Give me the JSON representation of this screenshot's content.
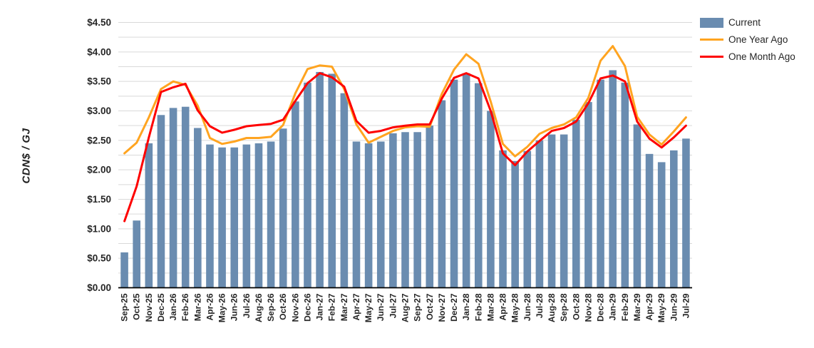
{
  "chart_data": {
    "type": "combo",
    "title": "",
    "ylabel": "CDN$ / GJ",
    "xlabel": "",
    "ylim": [
      0,
      4.5
    ],
    "y_tick_step": 0.5,
    "minor_grid_step": 0.25,
    "grid": true,
    "legend_position": "top-right",
    "y_tick_labels": [
      "$0.00",
      "$0.50",
      "$1.00",
      "$1.50",
      "$2.00",
      "$2.50",
      "$3.00",
      "$3.50",
      "$4.00",
      "$4.50"
    ],
    "categories": [
      "Sep-25",
      "Oct-25",
      "Nov-25",
      "Dec-25",
      "Jan-26",
      "Feb-26",
      "Mar-26",
      "Apr-26",
      "May-26",
      "Jun-26",
      "Jul-26",
      "Aug-26",
      "Sep-26",
      "Oct-26",
      "Nov-26",
      "Dec-26",
      "Jan-27",
      "Feb-27",
      "Mar-27",
      "Apr-27",
      "May-27",
      "Jun-27",
      "Jul-27",
      "Aug-27",
      "Sep-27",
      "Oct-27",
      "Nov-27",
      "Dec-27",
      "Jan-28",
      "Feb-28",
      "Mar-28",
      "Apr-28",
      "May-28",
      "Jun-28",
      "Jul-28",
      "Aug-28",
      "Sep-28",
      "Oct-28",
      "Nov-28",
      "Dec-28",
      "Jan-29",
      "Feb-29",
      "Mar-29",
      "Apr-29",
      "May-29",
      "Jun-29",
      "Jul-29"
    ],
    "series": [
      {
        "name": "Current",
        "kind": "bar",
        "color": "#6a8cb0",
        "values": [
          0.6,
          1.14,
          2.45,
          2.93,
          3.05,
          3.07,
          2.71,
          2.43,
          2.38,
          2.38,
          2.43,
          2.45,
          2.48,
          2.7,
          3.16,
          3.48,
          3.66,
          3.63,
          3.3,
          2.48,
          2.45,
          2.48,
          2.62,
          2.64,
          2.64,
          2.75,
          3.18,
          3.53,
          3.64,
          3.47,
          3.0,
          2.33,
          2.15,
          2.32,
          2.5,
          2.6,
          2.6,
          2.85,
          3.15,
          3.53,
          3.69,
          3.48,
          2.77,
          2.27,
          2.13,
          2.33,
          2.53
        ]
      },
      {
        "name": "One Year Ago",
        "kind": "line",
        "color": "#ffa420",
        "values": [
          2.28,
          2.46,
          2.89,
          3.37,
          3.5,
          3.44,
          3.09,
          2.54,
          2.44,
          2.48,
          2.54,
          2.54,
          2.56,
          2.76,
          3.3,
          3.71,
          3.77,
          3.75,
          3.37,
          2.77,
          2.46,
          2.56,
          2.66,
          2.72,
          2.74,
          2.73,
          3.29,
          3.7,
          3.96,
          3.8,
          3.16,
          2.44,
          2.23,
          2.39,
          2.61,
          2.71,
          2.77,
          2.89,
          3.22,
          3.85,
          4.1,
          3.76,
          2.9,
          2.6,
          2.43,
          2.65,
          2.89
        ]
      },
      {
        "name": "One Month Ago",
        "kind": "line",
        "color": "#fe0000",
        "values": [
          1.13,
          1.72,
          2.55,
          3.32,
          3.4,
          3.46,
          3.01,
          2.74,
          2.63,
          2.68,
          2.74,
          2.76,
          2.78,
          2.85,
          3.17,
          3.47,
          3.64,
          3.57,
          3.41,
          2.83,
          2.63,
          2.66,
          2.72,
          2.75,
          2.77,
          2.77,
          3.21,
          3.56,
          3.64,
          3.55,
          3.0,
          2.28,
          2.08,
          2.31,
          2.49,
          2.66,
          2.71,
          2.82,
          3.13,
          3.55,
          3.6,
          3.5,
          2.82,
          2.53,
          2.38,
          2.55,
          2.75
        ]
      }
    ],
    "colors": {
      "gridline": "#d9d9d9",
      "axis_line": "#000000",
      "tick_text": "#262626",
      "background": "#ffffff"
    }
  }
}
